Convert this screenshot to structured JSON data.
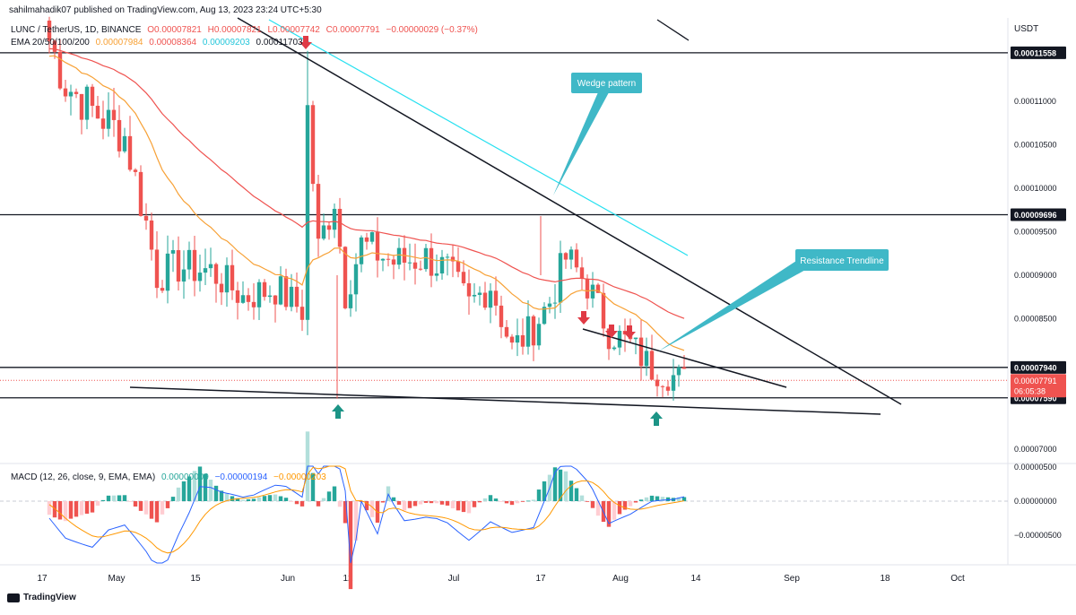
{
  "header": {
    "publisher": "sahilmahadik07 published on TradingView.com, Aug 13, 2023 23:24 UTC+5:30",
    "symbol": "LUNC / TetherUS, 1D, BINANCE",
    "ohlc": {
      "o": "O0.00007821",
      "h": "H0.00007821",
      "l": "L0.00007742",
      "c": "C0.00007791",
      "chg": "−0.00000029 (−0.37%)"
    },
    "ema_label": "EMA 20/50/100/200",
    "ema_values": [
      "0.00007984",
      "0.00008364",
      "0.00009203",
      "0.00011703"
    ],
    "currency": "USDT",
    "macd_label": "MACD (12, 26, close, 9, EMA, EMA)",
    "macd_values": [
      "0.00000009",
      "−0.00000194",
      "−0.00000203"
    ]
  },
  "brand": "TradingView",
  "colors": {
    "up": "#26a69a",
    "down": "#ef5350",
    "ema20": "#f7a136",
    "ema50": "#ef5350",
    "ema100": "#26e0f0",
    "macd": "#2962ff",
    "signal": "#ff9800",
    "hist_up_strong": "#26a69a",
    "hist_up_weak": "#b2dfdb",
    "hist_down_strong": "#ef5350",
    "hist_down_weak": "#ffcdd2",
    "callout": "#3fb8c7",
    "arrow_red": "#e03a45",
    "arrow_green": "#1c9486"
  },
  "chart_data": {
    "type": "candlestick",
    "price_axis": {
      "ticks": [
        {
          "v": 0.00011,
          "label": "0.00011000"
        },
        {
          "v": 0.000105,
          "label": "0.00010500"
        },
        {
          "v": 0.0001,
          "label": "0.00010000"
        },
        {
          "v": 9.5e-05,
          "label": "0.00009500"
        },
        {
          "v": 9e-05,
          "label": "0.00009000"
        },
        {
          "v": 8.5e-05,
          "label": "0.00008500"
        },
        {
          "v": 7e-05,
          "label": "0.00007000"
        }
      ],
      "marked_levels": [
        {
          "v": 0.00011558,
          "label": "0.00011558"
        },
        {
          "v": 9.696e-05,
          "label": "0.00009696"
        },
        {
          "v": 7.94e-05,
          "label": "0.00007940"
        },
        {
          "v": 7.59e-05,
          "label": "0.00007590"
        }
      ],
      "current": {
        "v": 7.791e-05,
        "label": "0.00007791",
        "countdown": "06:05:38"
      }
    },
    "macd_axis": {
      "ticks": [
        {
          "v": 5e-06,
          "label": "0.00000500"
        },
        {
          "v": 0,
          "label": "0.00000000"
        },
        {
          "v": -5e-06,
          "label": "−0.00000500"
        }
      ]
    },
    "time_axis": [
      "17",
      "May",
      "15",
      "Jun",
      "12",
      "Jul",
      "17",
      "Aug",
      "14",
      "Sep",
      "18",
      "Oct"
    ],
    "annotations": [
      "Wedge pattern",
      "Resistance Trendline"
    ],
    "series_hint": "Daily LUNC/USDT candles Apr 17 – Aug 13, 2023 with EMA 20/50/100, MACD"
  }
}
